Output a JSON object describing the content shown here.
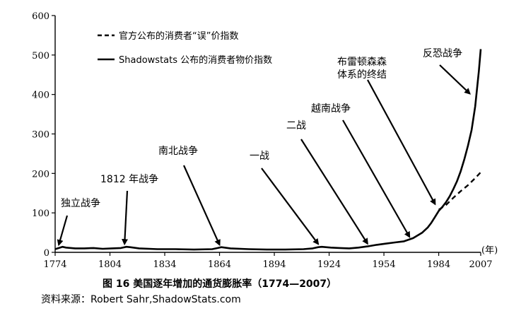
{
  "chart_data": {
    "type": "line",
    "caption": "图 16   美国逐年增加的通货膨胀率（1774—2007）",
    "source": "资料来源：Robert Sahr,ShadowStats.com",
    "x_unit": "(年)",
    "xlim": [
      1774,
      2007
    ],
    "ylim": [
      0,
      600
    ],
    "x_ticks": [
      1774,
      1804,
      1834,
      1864,
      1894,
      1924,
      1954,
      1984,
      2007
    ],
    "y_ticks": [
      0,
      100,
      200,
      300,
      400,
      500,
      600
    ],
    "legend_position": "top-left",
    "grid": false,
    "series": [
      {
        "name": "官方公布的消费者“误”价指数",
        "style": "dashed",
        "x": [
          1984,
          1988,
          1992,
          1996,
          2000,
          2004,
          2007
        ],
        "y": [
          108,
          120,
          138,
          155,
          170,
          188,
          203
        ]
      },
      {
        "name": "Shadowstats 公布的消费者物价指数",
        "style": "solid",
        "x": [
          1774,
          1778,
          1780,
          1785,
          1790,
          1795,
          1800,
          1805,
          1810,
          1813,
          1815,
          1820,
          1830,
          1840,
          1850,
          1860,
          1863,
          1865,
          1870,
          1880,
          1890,
          1900,
          1910,
          1915,
          1918,
          1920,
          1925,
          1930,
          1935,
          1940,
          1945,
          1950,
          1955,
          1960,
          1965,
          1970,
          1975,
          1978,
          1980,
          1982,
          1984,
          1986,
          1988,
          1990,
          1992,
          1994,
          1996,
          1998,
          2000,
          2002,
          2004,
          2005,
          2006,
          2007
        ],
        "y": [
          8,
          14,
          12,
          10,
          10,
          11,
          9,
          10,
          11,
          14,
          13,
          10,
          8,
          8,
          7,
          8,
          11,
          13,
          10,
          8,
          7,
          7,
          8,
          10,
          13,
          14,
          12,
          11,
          10,
          12,
          15,
          19,
          22,
          25,
          28,
          36,
          50,
          63,
          75,
          90,
          105,
          115,
          127,
          142,
          160,
          180,
          205,
          235,
          270,
          310,
          370,
          415,
          460,
          515
        ]
      }
    ],
    "annotations": [
      {
        "label": "独立战争",
        "x": 1776,
        "y": 12
      },
      {
        "label": "1812 年战争",
        "x": 1812,
        "y": 14
      },
      {
        "label": "南北战争",
        "x": 1864,
        "y": 12
      },
      {
        "label": "一战",
        "x": 1918,
        "y": 14
      },
      {
        "label": "二战",
        "x": 1945,
        "y": 15
      },
      {
        "label": "越南战争",
        "x": 1968,
        "y": 32
      },
      {
        "label": "布雷顿森森\n体系的终结",
        "x": 1982,
        "y": 115
      },
      {
        "label": "反恐战争",
        "x": 2001,
        "y": 395
      }
    ]
  }
}
